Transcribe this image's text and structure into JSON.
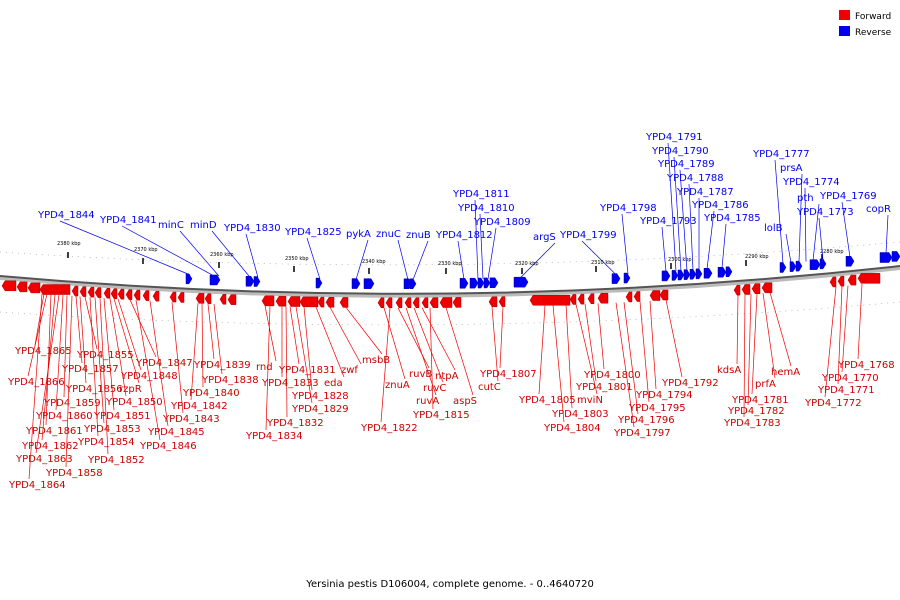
{
  "legend": {
    "forward": {
      "label": "Forward",
      "color": "#ee0000"
    },
    "reverse": {
      "label": "Reverse",
      "color": "#0000ee"
    }
  },
  "caption": "Yersinia pestis D106004, complete genome. - 0..4640720",
  "ticks": [
    "2380 kbp",
    "2370 kbp",
    "2360 kbp",
    "2350 kbp",
    "2340 kbp",
    "2330 kbp",
    "2320 kbp",
    "2310 kbp",
    "2300 kbp",
    "2290 kbp",
    "2280 kbp"
  ],
  "reverse_labels": [
    "YPD4_1844",
    "YPD4_1841",
    "minC",
    "minD",
    "YPD4_1830",
    "YPD4_1825",
    "pykA",
    "znuC",
    "znuB",
    "YPD4_1812",
    "YPD4_1811",
    "YPD4_1810",
    "YPD4_1809",
    "argS",
    "YPD4_1799",
    "YPD4_1798",
    "YPD4_1793",
    "YPD4_1791",
    "YPD4_1790",
    "YPD4_1789",
    "YPD4_1788",
    "YPD4_1787",
    "YPD4_1786",
    "YPD4_1785",
    "YPD4_1777",
    "lolB",
    "prsA",
    "YPD4_1774",
    "pth",
    "YPD4_1773",
    "YPD4_1769",
    "copR"
  ],
  "forward_labels": [
    "YPD4_1865",
    "YPD4_1866",
    "YPD4_1861",
    "YPD4_1862",
    "YPD4_1863",
    "YPD4_1864",
    "YPD4_1860",
    "YPD4_1859",
    "YPD4_1858",
    "YPD4_1857",
    "YPD4_1856",
    "YPD4_1855",
    "YPD4_1854",
    "YPD4_1853",
    "YPD4_1852",
    "YPD4_1851",
    "YPD4_1850",
    "rzpR",
    "YPD4_1848",
    "YPD4_1847",
    "YPD4_1846",
    "YPD4_1845",
    "YPD4_1843",
    "YPD4_1842",
    "YPD4_1840",
    "YPD4_1839",
    "YPD4_1838",
    "rnd",
    "YPD4_1834",
    "YPD4_1833",
    "YPD4_1832",
    "YPD4_1831",
    "YPD4_1829",
    "YPD4_1828",
    "eda",
    "zwf",
    "msbB",
    "znuA",
    "YPD4_1822",
    "ruvB",
    "ruvA",
    "ruvC",
    "ntpA",
    "YPD4_1815",
    "aspS",
    "cutC",
    "YPD4_1807",
    "YPD4_1805",
    "YPD4_1804",
    "YPD4_1803",
    "mviN",
    "YPD4_1801",
    "YPD4_1800",
    "YPD4_1797",
    "YPD4_1796",
    "YPD4_1795",
    "YPD4_1794",
    "YPD4_1792",
    "kdsA",
    "YPD4_1783",
    "YPD4_1782",
    "YPD4_1781",
    "prfA",
    "hemA",
    "YPD4_1772",
    "YPD4_1771",
    "YPD4_1770",
    "YPD4_1768"
  ]
}
